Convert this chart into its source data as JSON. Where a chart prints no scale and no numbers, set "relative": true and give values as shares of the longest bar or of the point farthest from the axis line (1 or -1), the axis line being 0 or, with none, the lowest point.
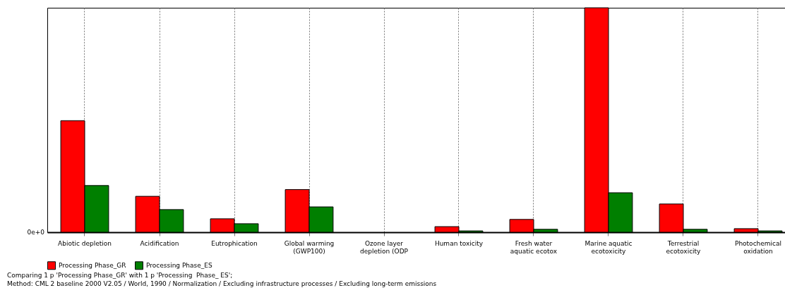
{
  "chart_data": {
    "type": "bar",
    "relative": true,
    "categories": [
      "Abiotic depletion",
      "Acidification",
      "Eutrophication",
      "Global warming (GWP100)",
      "Ozone layer depletion (ODP",
      "Human toxicity",
      "Fresh water aquatic ecotox",
      "Marine aquatic ecotoxicity",
      "Terrestrial ecotoxicity",
      "Photochemical oxidation"
    ],
    "series": [
      {
        "name": "Processing Phase_GR",
        "color": "#ff0000",
        "values": [
          0.497,
          0.16,
          0.06,
          0.19,
          0,
          0.025,
          0.057,
          1,
          0.126,
          0.016
        ]
      },
      {
        "name": "Processing  Phase_ES",
        "color": "#007f00",
        "values": [
          0.208,
          0.101,
          0.038,
          0.113,
          0,
          0.006,
          0.013,
          0.176,
          0.013,
          0.006
        ]
      }
    ],
    "grid": "x",
    "legend": "bottom",
    "annotations": [
      "0e+0",
      "Comparing 1 p 'Processing Phase_GR' with 1 p 'Processing  Phase_ ES';",
      "Method: CML 2 baseline 2000 V2.05 / World, 1990 / Normalization / Excluding infrastructure processes / Excluding long-term emissions"
    ]
  }
}
